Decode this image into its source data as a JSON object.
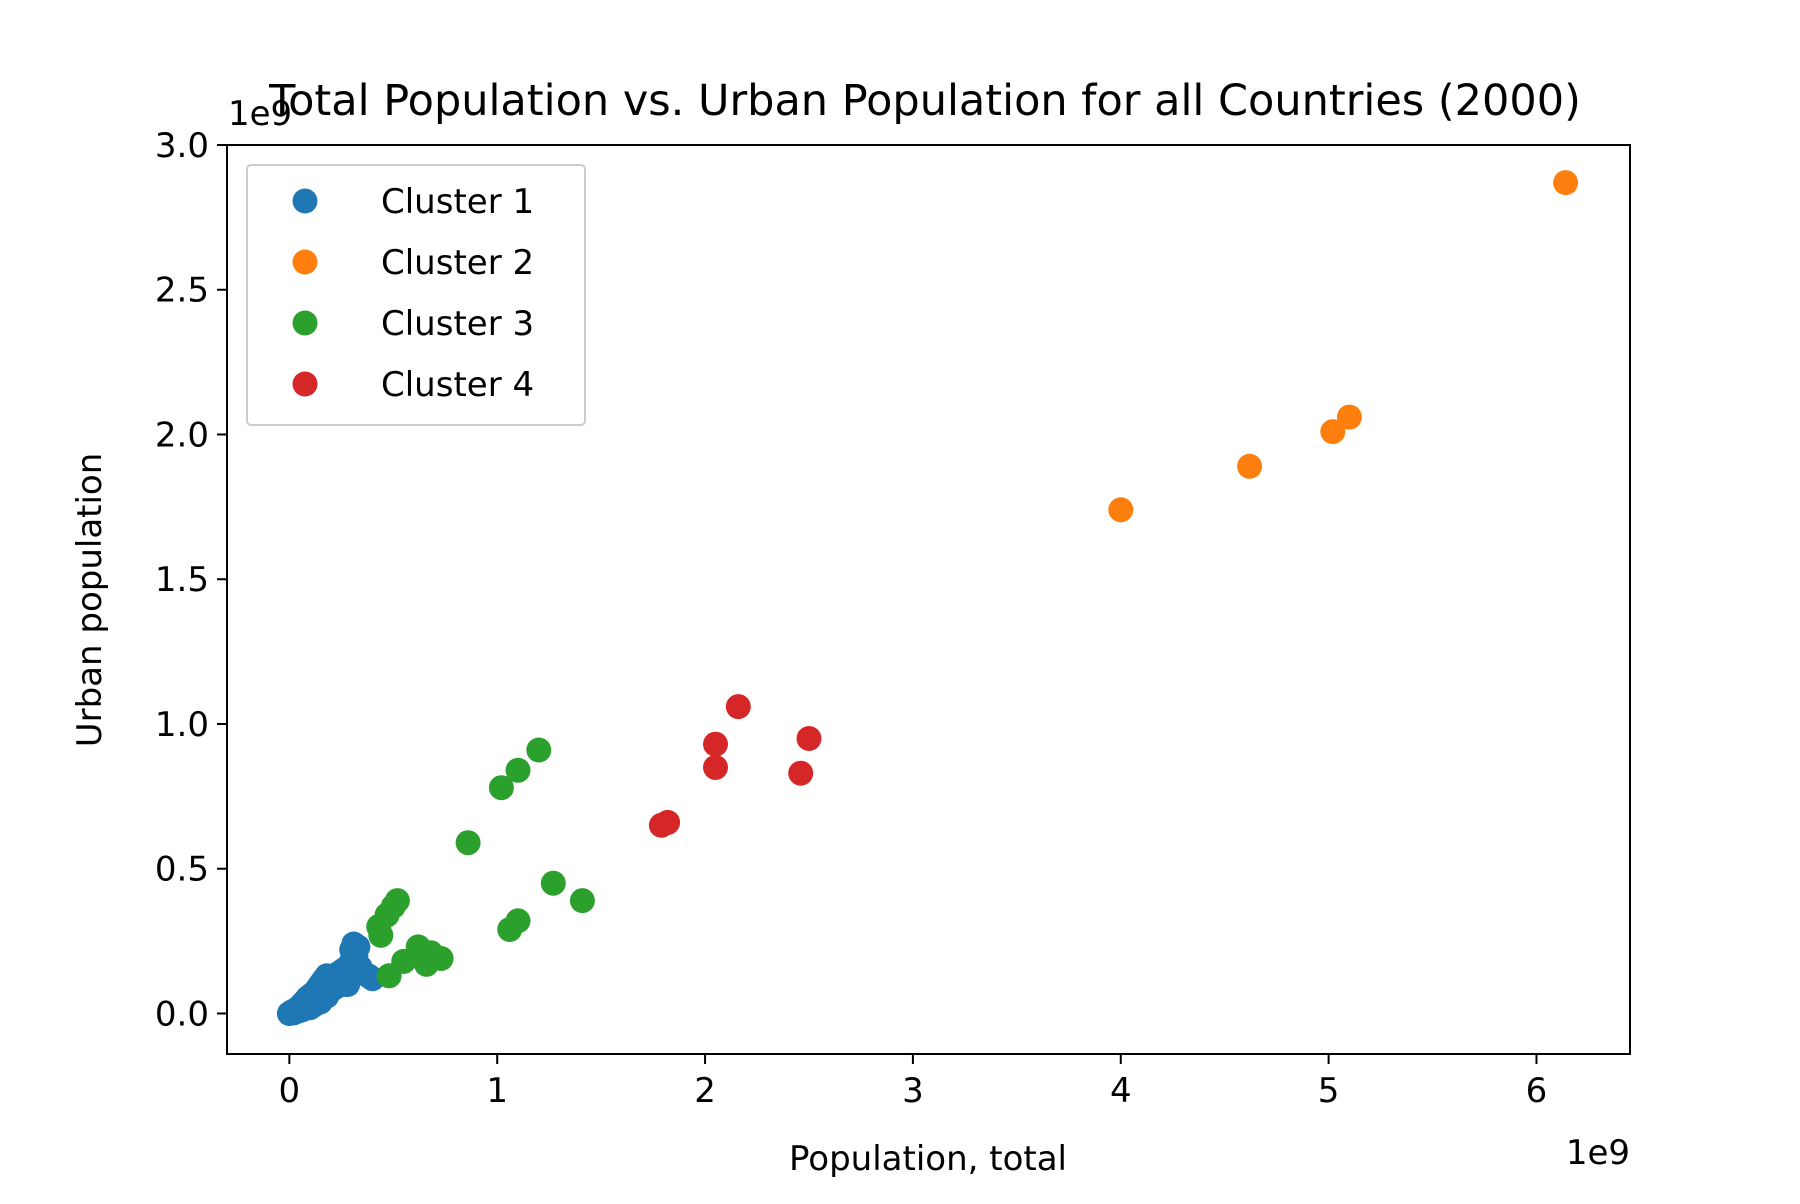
{
  "chart_data": {
    "type": "scatter",
    "title": "Total Population vs. Urban Population for all Countries (2000)",
    "xlabel": "Population, total",
    "ylabel": "Urban population",
    "x_offset_text": "1e9",
    "y_offset_text": "1e9",
    "xlim": [
      -0.3,
      6.45
    ],
    "ylim": [
      -0.14,
      3.0
    ],
    "xticks": [
      0,
      1,
      2,
      3,
      4,
      5,
      6
    ],
    "xtick_labels": [
      "0",
      "1",
      "2",
      "3",
      "4",
      "5",
      "6"
    ],
    "yticks": [
      0.0,
      0.5,
      1.0,
      1.5,
      2.0,
      2.5,
      3.0
    ],
    "ytick_labels": [
      "0.0",
      "0.5",
      "1.0",
      "1.5",
      "2.0",
      "2.5",
      "3.0"
    ],
    "grid": false,
    "legend_position": "upper-left",
    "series": [
      {
        "name": "Cluster 1",
        "color": "#1f77b4",
        "points": [
          [
            0.0,
            0.0
          ],
          [
            0.005,
            0.002
          ],
          [
            0.01,
            0.004
          ],
          [
            0.015,
            0.006
          ],
          [
            0.02,
            0.008
          ],
          [
            0.025,
            0.01
          ],
          [
            0.03,
            0.012
          ],
          [
            0.035,
            0.014
          ],
          [
            0.04,
            0.016
          ],
          [
            0.045,
            0.02
          ],
          [
            0.05,
            0.022
          ],
          [
            0.055,
            0.026
          ],
          [
            0.06,
            0.03
          ],
          [
            0.065,
            0.034
          ],
          [
            0.07,
            0.038
          ],
          [
            0.075,
            0.042
          ],
          [
            0.08,
            0.045
          ],
          [
            0.085,
            0.05
          ],
          [
            0.09,
            0.055
          ],
          [
            0.1,
            0.06
          ],
          [
            0.11,
            0.066
          ],
          [
            0.12,
            0.07
          ],
          [
            0.13,
            0.08
          ],
          [
            0.14,
            0.09
          ],
          [
            0.15,
            0.1
          ],
          [
            0.16,
            0.11
          ],
          [
            0.17,
            0.12
          ],
          [
            0.18,
            0.13
          ],
          [
            0.2,
            0.12
          ],
          [
            0.22,
            0.13
          ],
          [
            0.24,
            0.14
          ],
          [
            0.26,
            0.15
          ],
          [
            0.28,
            0.16
          ],
          [
            0.3,
            0.18
          ],
          [
            0.32,
            0.2
          ],
          [
            0.3,
            0.22
          ],
          [
            0.31,
            0.24
          ],
          [
            0.33,
            0.23
          ],
          [
            0.35,
            0.14
          ],
          [
            0.38,
            0.13
          ],
          [
            0.4,
            0.12
          ],
          [
            0.12,
            0.03
          ],
          [
            0.1,
            0.02
          ],
          [
            0.2,
            0.08
          ],
          [
            0.26,
            0.1
          ],
          [
            0.28,
            0.1
          ],
          [
            0.18,
            0.06
          ],
          [
            0.15,
            0.04
          ],
          [
            0.22,
            0.09
          ],
          [
            0.34,
            0.16
          ],
          [
            0.02,
            0.002
          ],
          [
            0.04,
            0.008
          ],
          [
            0.06,
            0.012
          ],
          [
            0.08,
            0.02
          ],
          [
            0.09,
            0.03
          ],
          [
            0.11,
            0.04
          ],
          [
            0.13,
            0.05
          ],
          [
            0.16,
            0.07
          ],
          [
            0.17,
            0.09
          ],
          [
            0.19,
            0.1
          ]
        ]
      },
      {
        "name": "Cluster 2",
        "color": "#ff7f0e",
        "points": [
          [
            4.0,
            1.74
          ],
          [
            4.62,
            1.89
          ],
          [
            5.02,
            2.01
          ],
          [
            5.1,
            2.06
          ],
          [
            6.14,
            2.87
          ]
        ]
      },
      {
        "name": "Cluster 3",
        "color": "#2ca02c",
        "points": [
          [
            0.43,
            0.3
          ],
          [
            0.44,
            0.27
          ],
          [
            0.47,
            0.34
          ],
          [
            0.5,
            0.37
          ],
          [
            0.52,
            0.39
          ],
          [
            0.48,
            0.13
          ],
          [
            0.55,
            0.18
          ],
          [
            0.62,
            0.23
          ],
          [
            0.66,
            0.17
          ],
          [
            0.68,
            0.21
          ],
          [
            0.73,
            0.19
          ],
          [
            0.86,
            0.59
          ],
          [
            1.02,
            0.78
          ],
          [
            1.1,
            0.84
          ],
          [
            1.2,
            0.91
          ],
          [
            1.06,
            0.29
          ],
          [
            1.1,
            0.32
          ],
          [
            1.27,
            0.45
          ],
          [
            1.41,
            0.39
          ]
        ]
      },
      {
        "name": "Cluster 4",
        "color": "#d62728",
        "points": [
          [
            1.79,
            0.65
          ],
          [
            1.82,
            0.66
          ],
          [
            2.05,
            0.85
          ],
          [
            2.05,
            0.93
          ],
          [
            2.16,
            1.06
          ],
          [
            2.46,
            0.83
          ],
          [
            2.5,
            0.95
          ]
        ]
      }
    ]
  }
}
